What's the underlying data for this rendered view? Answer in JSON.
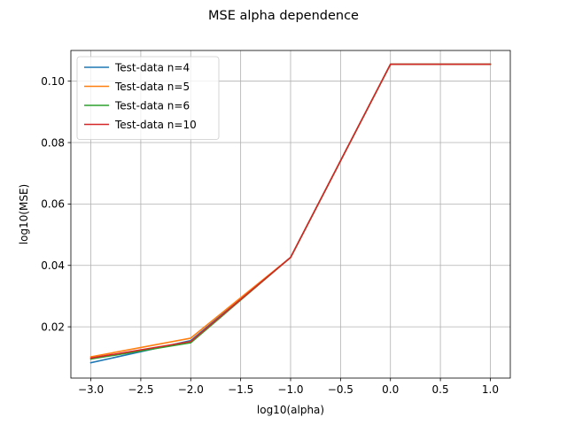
{
  "chart_data": {
    "type": "line",
    "title": "MSE alpha dependence",
    "xlabel": "log10(alpha)",
    "ylabel": "log10(MSE)",
    "xlim": [
      -3.2,
      1.2
    ],
    "ylim": [
      0.0033,
      0.11
    ],
    "xticks": [
      -3.0,
      -2.5,
      -2.0,
      -1.5,
      -1.0,
      -0.5,
      0.0,
      0.5,
      1.0
    ],
    "xtick_labels": [
      "−3.0",
      "−2.5",
      "−2.0",
      "−1.5",
      "−1.0",
      "−0.5",
      "0.0",
      "0.5",
      "1.0"
    ],
    "yticks": [
      0.02,
      0.04,
      0.06,
      0.08,
      0.1
    ],
    "ytick_labels": [
      "0.02",
      "0.04",
      "0.06",
      "0.08",
      "0.10"
    ],
    "grid": true,
    "legend": "top-left",
    "x": [
      -3,
      -2,
      -1,
      0,
      1
    ],
    "series": [
      {
        "name": "Test-data n=4",
        "color": "#1f77b4",
        "values": [
          0.0083,
          0.0155,
          0.0426,
          0.1055,
          0.1055
        ]
      },
      {
        "name": "Test-data n=5",
        "color": "#ff7f0e",
        "values": [
          0.0102,
          0.0163,
          0.0426,
          0.1055,
          0.1055
        ]
      },
      {
        "name": "Test-data n=6",
        "color": "#2ca02c",
        "values": [
          0.0095,
          0.0148,
          0.0426,
          0.1055,
          0.1055
        ]
      },
      {
        "name": "Test-data n=10",
        "color": "#d62728",
        "values": [
          0.0098,
          0.0152,
          0.0426,
          0.1055,
          0.1055
        ]
      }
    ]
  }
}
